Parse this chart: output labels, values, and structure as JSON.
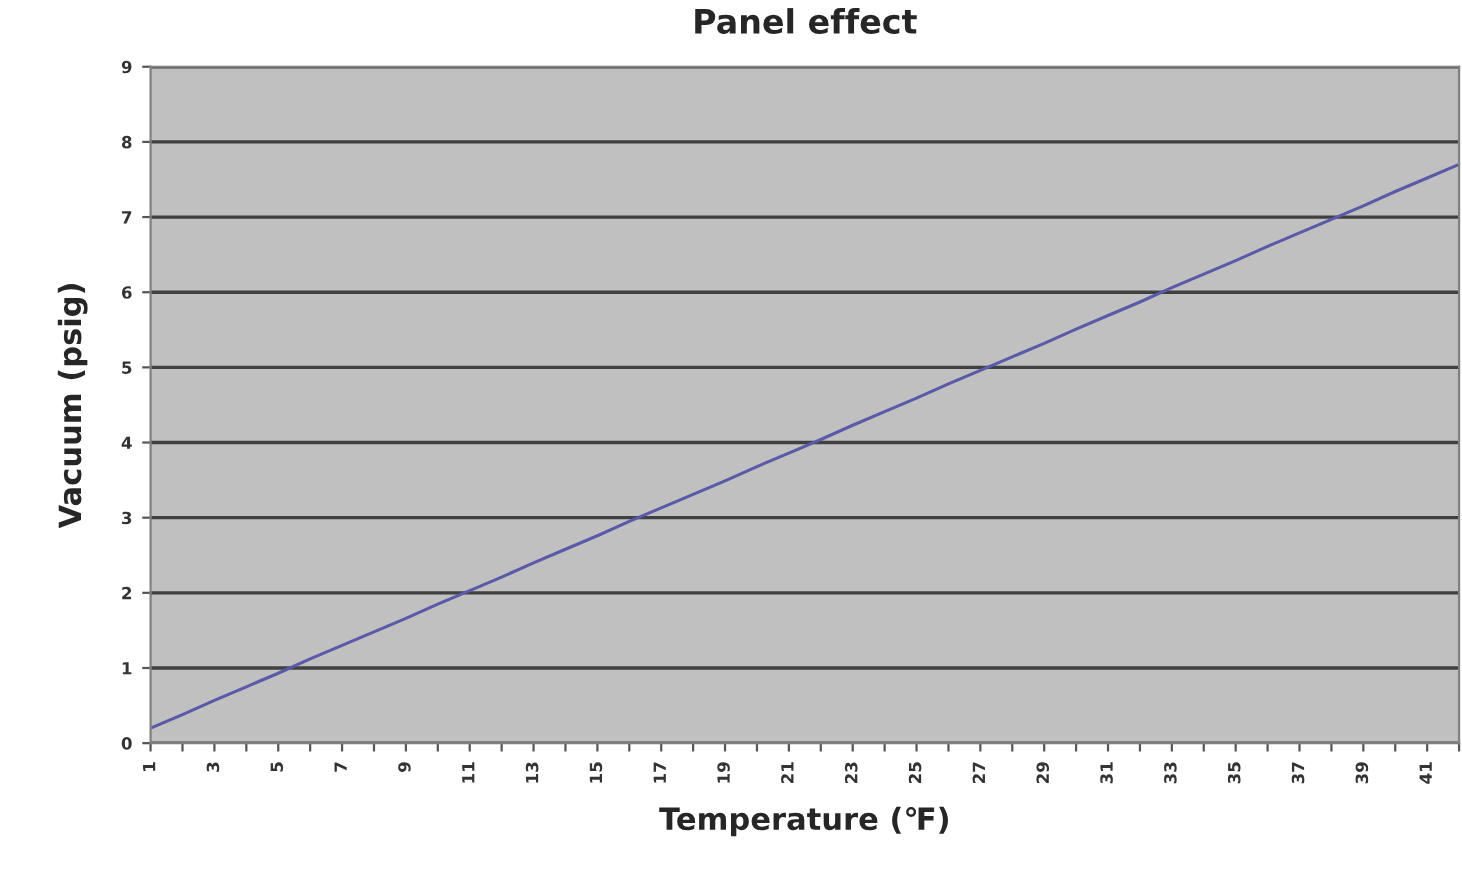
{
  "chart_data": {
    "type": "line",
    "title": "Panel effect",
    "xlabel": "Temperature (℉)",
    "ylabel": "Vacuum (psig)",
    "categories": [
      "1",
      null,
      "3",
      null,
      "5",
      null,
      "7",
      null,
      "9",
      null,
      "11",
      null,
      "13",
      null,
      "15",
      null,
      "17",
      null,
      "19",
      null,
      "21",
      null,
      "23",
      null,
      "25",
      null,
      "27",
      null,
      "29",
      null,
      "31",
      null,
      "33",
      null,
      "35",
      null,
      "37",
      null,
      "39",
      null,
      "41",
      null
    ],
    "series": [
      {
        "color": "#5a5aa8",
        "values": [
          0.2,
          0.38,
          0.57,
          0.75,
          0.93,
          1.12,
          1.3,
          1.48,
          1.66,
          1.85,
          2.03,
          2.21,
          2.4,
          2.58,
          2.76,
          2.95,
          3.13,
          3.31,
          3.49,
          3.68,
          3.86,
          4.04,
          4.23,
          4.41,
          4.59,
          4.78,
          4.96,
          5.14,
          5.32,
          5.51,
          5.69,
          5.87,
          6.06,
          6.24,
          6.42,
          6.61,
          6.79,
          6.97,
          7.15,
          7.34,
          7.52,
          7.7
        ]
      }
    ],
    "ylim": [
      0,
      9
    ],
    "yticks": [
      0,
      1,
      2,
      3,
      4,
      5,
      6,
      7,
      8,
      9
    ],
    "grid": "y",
    "marker": "none",
    "line_style": "solid"
  }
}
